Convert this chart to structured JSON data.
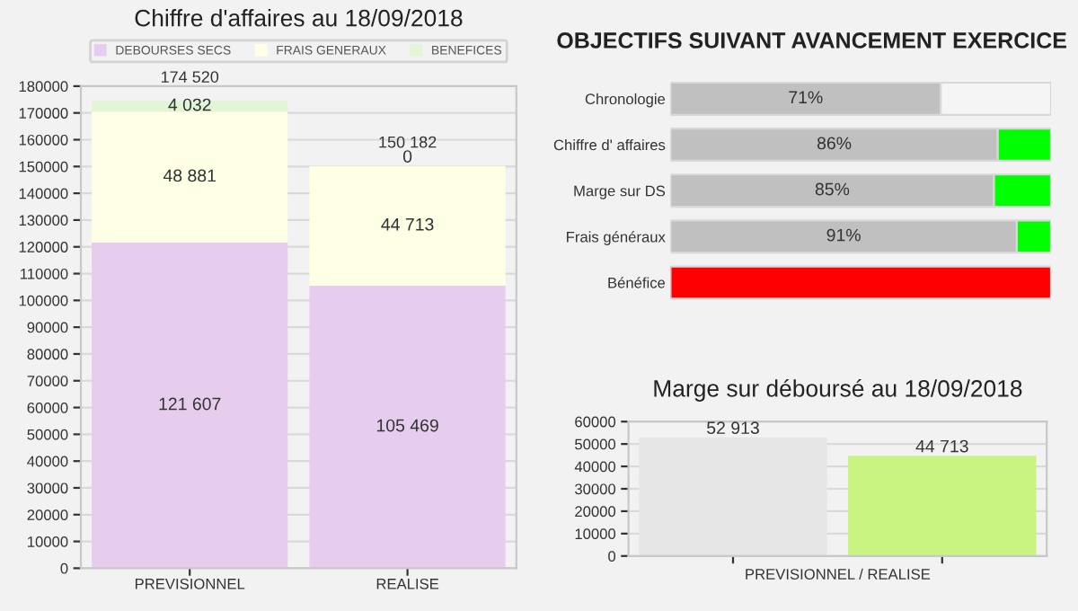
{
  "chart_data": [
    {
      "type": "bar",
      "title": "Chiffre d'affaires au 18/09/2018",
      "categories": [
        "PREVISIONNEL",
        "REALISE"
      ],
      "stacked": true,
      "series": [
        {
          "name": "DEBOURSES SECS",
          "color": "#e6cdee",
          "values": [
            121607,
            105469
          ],
          "value_labels": [
            "121 607",
            "105 469"
          ]
        },
        {
          "name": "FRAIS GENERAUX",
          "color": "#ffffe6",
          "values": [
            48881,
            44713
          ],
          "value_labels": [
            "48 881",
            "44 713"
          ]
        },
        {
          "name": "BENEFICES",
          "color": "#e2f5d6",
          "values": [
            4032,
            0
          ],
          "value_labels": [
            "4 032",
            "0"
          ]
        }
      ],
      "totals": [
        "174 520",
        "150 182"
      ],
      "ylim": [
        0,
        180000
      ],
      "yticks": [
        0,
        10000,
        20000,
        30000,
        40000,
        50000,
        60000,
        70000,
        80000,
        90000,
        100000,
        110000,
        120000,
        130000,
        140000,
        150000,
        160000,
        170000,
        180000
      ],
      "grid": "y",
      "legend": "top"
    },
    {
      "type": "bar",
      "title": "OBJECTIFS SUIVANT AVANCEMENT EXERCICE",
      "orientation": "horizontal",
      "stacked": true,
      "categories": [
        "Chronologie",
        "Chiffre d' affaires",
        "Marge sur DS",
        "Frais généraux",
        "Bénéfice"
      ],
      "series": [
        {
          "colors": [
            "#c0c0c0",
            "#c0c0c0",
            "#c0c0c0",
            "#c0c0c0",
            "#c0c0c0"
          ],
          "values": [
            71,
            86,
            85,
            91,
            0
          ],
          "value_labels": [
            "71%",
            "86%",
            "85%",
            "91%",
            null
          ]
        },
        {
          "colors": [
            "#f5f5f5",
            "#00ff00",
            "#00ff00",
            "#00ff00",
            "#ff0000"
          ],
          "values": [
            29,
            14,
            15,
            9,
            100
          ]
        }
      ],
      "xlim": [
        0,
        100
      ],
      "tick_labels": "y"
    },
    {
      "type": "bar",
      "title": "Marge sur déboursé au 18/09/2018",
      "xlabel": "PREVISIONNEL / REALISE",
      "categories": [
        null,
        null
      ],
      "series": [
        {
          "colors": [
            "#e6e6e6",
            "#c8f582"
          ],
          "values": [
            52913,
            44713
          ],
          "value_labels": [
            "52 913",
            "44 713"
          ]
        }
      ],
      "ylim": [
        0,
        60000
      ],
      "yticks": [
        0,
        10000,
        20000,
        30000,
        40000,
        50000,
        60000
      ],
      "grid": "y"
    }
  ]
}
